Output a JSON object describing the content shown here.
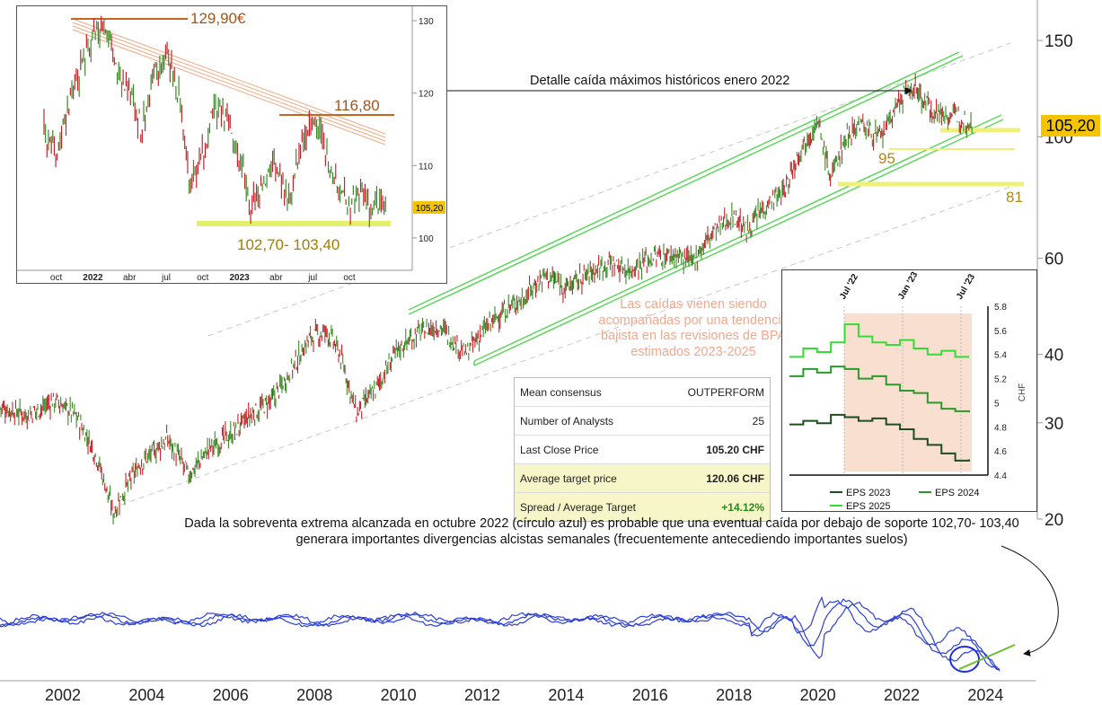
{
  "chart_data": [
    {
      "type": "line",
      "scale": "log",
      "x_ticks": [
        "2002",
        "2004",
        "2006",
        "2008",
        "2010",
        "2012",
        "2014",
        "2016",
        "2018",
        "2020",
        "2022",
        "2024"
      ],
      "y_ticks": [
        20,
        30,
        40,
        60,
        100,
        150
      ],
      "last_price": "105,20",
      "levels": [
        {
          "label": "95",
          "value": 95
        },
        {
          "label": "81",
          "value": 81
        }
      ],
      "series": [
        {
          "values_by_year": [
            [
              2000.5,
              32
            ],
            [
              2001.2,
              31
            ],
            [
              2001.8,
              33
            ],
            [
              2002.3,
              31
            ],
            [
              2002.8,
              26
            ],
            [
              2003.2,
              20.5
            ],
            [
              2003.8,
              25
            ],
            [
              2004.5,
              28
            ],
            [
              2005.0,
              24
            ],
            [
              2005.5,
              27
            ],
            [
              2006.0,
              28.5
            ],
            [
              2006.5,
              31
            ],
            [
              2007.0,
              33
            ],
            [
              2007.5,
              38
            ],
            [
              2007.9,
              43
            ],
            [
              2008.3,
              44
            ],
            [
              2008.6,
              40
            ],
            [
              2009.0,
              31
            ],
            [
              2009.5,
              35
            ],
            [
              2010.0,
              41
            ],
            [
              2010.5,
              44
            ],
            [
              2011.0,
              45
            ],
            [
              2011.6,
              40
            ],
            [
              2012.0,
              44
            ],
            [
              2012.5,
              48
            ],
            [
              2013.0,
              51
            ],
            [
              2013.5,
              56
            ],
            [
              2014.0,
              53
            ],
            [
              2014.5,
              56
            ],
            [
              2015.0,
              59
            ],
            [
              2015.5,
              57
            ],
            [
              2016.0,
              60
            ],
            [
              2016.6,
              61
            ],
            [
              2017.0,
              59
            ],
            [
              2017.5,
              67
            ],
            [
              2018.0,
              72
            ],
            [
              2018.3,
              67
            ],
            [
              2018.8,
              76
            ],
            [
              2019.2,
              79
            ],
            [
              2019.6,
              96
            ],
            [
              2020.0,
              106
            ],
            [
              2020.3,
              84
            ],
            [
              2020.7,
              101
            ],
            [
              2021.0,
              106
            ],
            [
              2021.5,
              99
            ],
            [
              2022.0,
              118
            ],
            [
              2022.3,
              123
            ],
            [
              2022.7,
              112
            ],
            [
              2023.0,
              110
            ],
            [
              2023.5,
              108
            ],
            [
              2023.7,
              105.2
            ]
          ]
        },
        {
          "name": "EPS 2025",
          "values_by_year": [
            [
              2022.4,
              5.45
            ],
            [
              2022.6,
              5.35
            ],
            [
              2022.8,
              5.7
            ],
            [
              2023.2,
              5.45
            ],
            [
              2023.6,
              5.38
            ]
          ]
        }
      ]
    },
    {
      "type": "line",
      "x_ticks": [
        "oct",
        "2022",
        "abr",
        "jul",
        "oct",
        "2023",
        "abr",
        "jul",
        "oct"
      ],
      "y_ticks": [
        100,
        110,
        120,
        130
      ],
      "last_price": "105,20",
      "levels": [
        {
          "label": "129,90€",
          "value": 129.9
        },
        {
          "label": "116,80",
          "value": 116.8
        },
        {
          "label": "102,70- 103,40",
          "value": 103.1
        }
      ],
      "values_by_month": [
        [
          0,
          115
        ],
        [
          1,
          112
        ],
        [
          2,
          118
        ],
        [
          3,
          123
        ],
        [
          4,
          128
        ],
        [
          5,
          129.9
        ],
        [
          6,
          124
        ],
        [
          7,
          120
        ],
        [
          8,
          115
        ],
        [
          9,
          122
        ],
        [
          10,
          126
        ],
        [
          11,
          120
        ],
        [
          12,
          107
        ],
        [
          13,
          112
        ],
        [
          14,
          118
        ],
        [
          15,
          116
        ],
        [
          16,
          111
        ],
        [
          17,
          104
        ],
        [
          18,
          108
        ],
        [
          19,
          110
        ],
        [
          20,
          105
        ],
        [
          21,
          112
        ],
        [
          22,
          116.8
        ],
        [
          23,
          112
        ],
        [
          24,
          108
        ],
        [
          25,
          104.5
        ],
        [
          26,
          106
        ],
        [
          27,
          103.5
        ],
        [
          28,
          105.2
        ]
      ]
    },
    {
      "type": "line",
      "ylabel": "CHF",
      "x_ticks": [
        "Jul '22",
        "Jan '23",
        "Jul '23"
      ],
      "y_ticks": [
        4.4,
        4.6,
        4.8,
        5,
        5.2,
        5.4,
        5.6,
        5.8
      ],
      "legend": "bottom",
      "series": [
        {
          "name": "EPS 2023",
          "color": "#1e4d1e",
          "values": [
            4.82,
            4.85,
            4.83,
            4.9,
            4.88,
            4.85,
            4.87,
            4.82,
            4.78,
            4.7,
            4.65,
            4.58,
            4.52,
            4.53
          ]
        },
        {
          "name": "EPS 2024",
          "color": "#2a9a2a",
          "values": [
            5.22,
            5.28,
            5.25,
            5.3,
            5.28,
            5.2,
            5.22,
            5.15,
            5.1,
            5.08,
            5.0,
            4.95,
            4.93,
            4.92
          ]
        },
        {
          "name": "EPS 2025",
          "color": "#33dd33",
          "values": [
            5.38,
            5.45,
            5.42,
            5.5,
            5.65,
            5.55,
            5.5,
            5.48,
            5.52,
            5.45,
            5.4,
            5.43,
            5.38,
            5.38
          ]
        }
      ]
    }
  ],
  "annotations": {
    "detail": "Detalle caída máximos históricos enero 2022",
    "eps_trend": "Las caídas vienen siendo acompañadas por una tendencia bajista en las revisiones de BPA estimados 2023-2025",
    "divergence": "Dada la sobreventa extrema alcanzada en octubre 2022 (círculo azul) es probable que una eventual caída por debajo de soporte 102,70- 103,40  generara importantes divergencias alcistas semanales (frecuentemente antecediendo importantes suelos)"
  },
  "consensus": {
    "rows": [
      {
        "label": "Mean consensus",
        "value": "OUTPERFORM"
      },
      {
        "label": "Number of Analysts",
        "value": "25"
      },
      {
        "label": "Last Close Price",
        "value": "105.20 CHF"
      },
      {
        "label": "Average target price",
        "value": "120.06 CHF"
      },
      {
        "label": "Spread / Average Target",
        "value": "+14.12%"
      }
    ]
  },
  "colors": {
    "price_up": "#3a8a26",
    "price_down": "#c0262c",
    "channel": "#5dd65d",
    "oscillator": "#2b3fd6",
    "level": "#eef07a",
    "level_text": "#b8860b",
    "orange": "#c8641e"
  }
}
